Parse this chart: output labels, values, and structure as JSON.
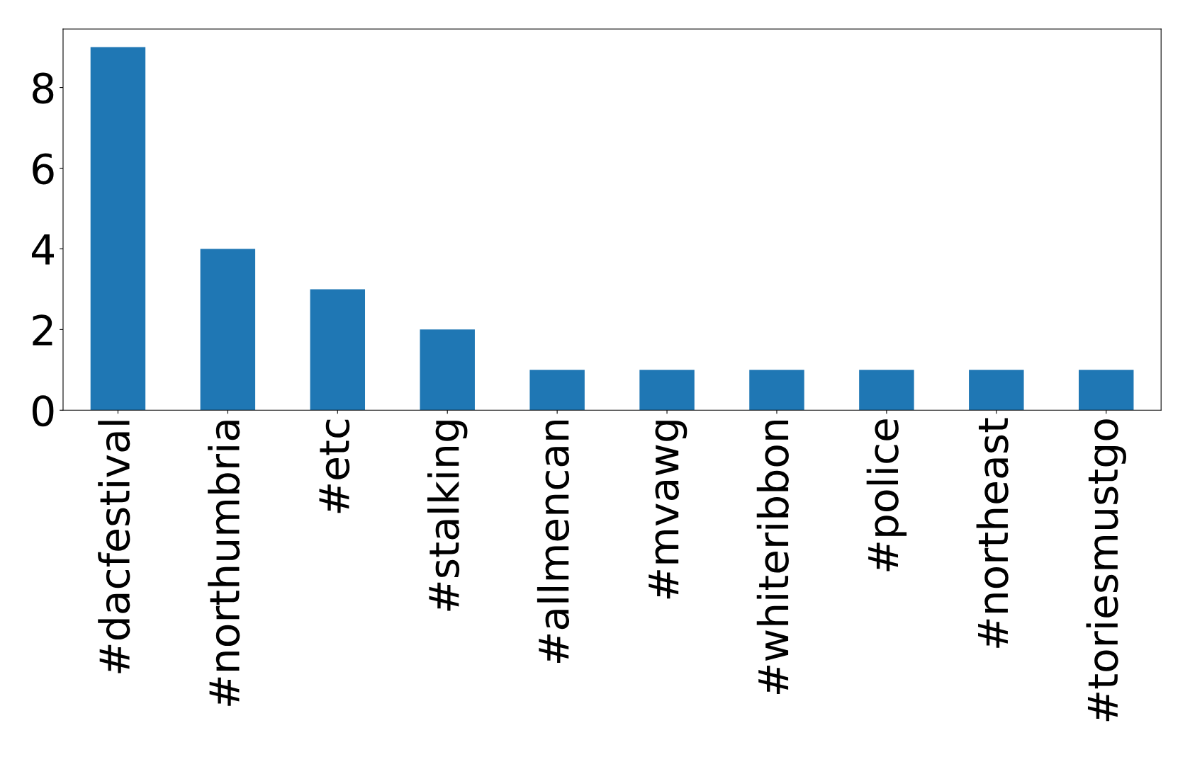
{
  "chart_data": {
    "type": "bar",
    "categories": [
      "#dacfestival",
      "#northumbria",
      "#etc",
      "#stalking",
      "#allmencan",
      "#mvawg",
      "#whiteribbon",
      "#police",
      "#northeast",
      "#toriesmustgo"
    ],
    "values": [
      9,
      4,
      3,
      2,
      1,
      1,
      1,
      1,
      1,
      1
    ],
    "color": "#1f77b4",
    "ylim": [
      0,
      9.45
    ],
    "yticks": [
      0,
      2,
      4,
      6,
      8
    ],
    "grid": false
  }
}
